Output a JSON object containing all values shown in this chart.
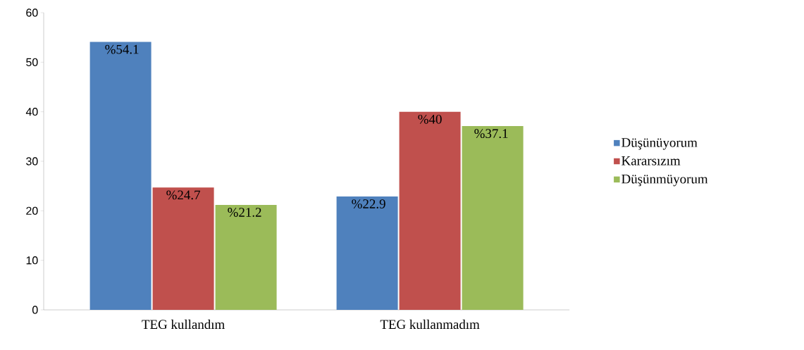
{
  "chart_data": {
    "type": "bar",
    "categories": [
      "TEG kullandım",
      "TEG kullanmadım"
    ],
    "series": [
      {
        "name": "Düşünüyorum",
        "color": "#4f81bd",
        "values": [
          54.1,
          22.9
        ],
        "value_labels": [
          "%54.1",
          "%22.9"
        ]
      },
      {
        "name": "Kararsızım",
        "color": "#c0504d",
        "values": [
          24.7,
          40
        ],
        "value_labels": [
          "%24.7",
          "%40"
        ]
      },
      {
        "name": "Düşünmüyorum",
        "color": "#9bbb59",
        "values": [
          21.2,
          37.1
        ],
        "value_labels": [
          "%21.2",
          "%37.1"
        ]
      }
    ],
    "ylim": [
      0,
      60
    ],
    "yticks": [
      0,
      10,
      20,
      30,
      40,
      50,
      60
    ],
    "grid": false,
    "legend": "right"
  }
}
